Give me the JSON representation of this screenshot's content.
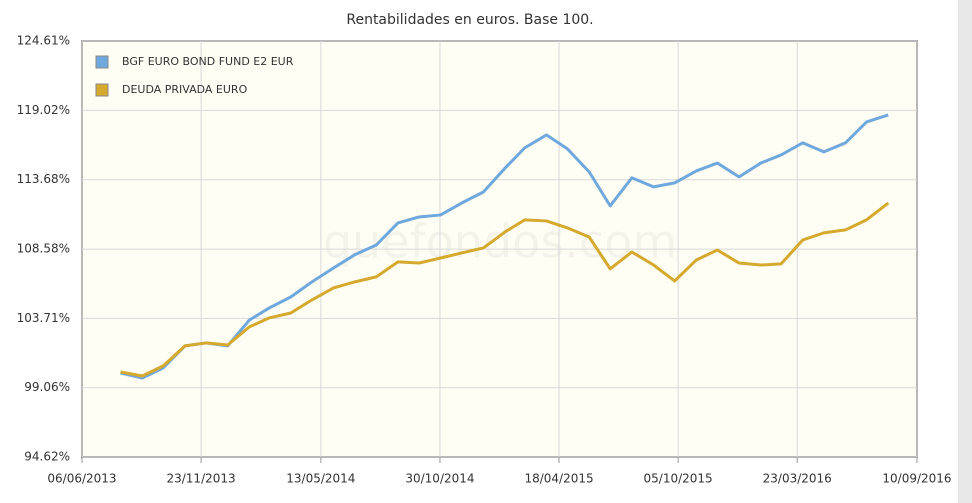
{
  "chart_data": {
    "type": "line",
    "title": "Rentabilidades en euros. Base 100.",
    "watermark": "quefondos.com",
    "x": [
      "31/07/2013",
      "31/08/2013",
      "30/09/2013",
      "31/10/2013",
      "30/11/2013",
      "31/12/2013",
      "31/01/2014",
      "28/02/2014",
      "31/03/2014",
      "30/04/2014",
      "31/05/2014",
      "30/06/2014",
      "31/07/2014",
      "31/08/2014",
      "30/09/2014",
      "31/10/2014",
      "30/11/2014",
      "31/12/2014",
      "31/01/2015",
      "28/02/2015",
      "31/03/2015",
      "30/04/2015",
      "31/05/2015",
      "30/06/2015",
      "31/07/2015",
      "31/08/2015",
      "30/09/2015",
      "31/10/2015",
      "30/11/2015",
      "31/12/2015",
      "31/01/2016",
      "29/02/2016",
      "31/03/2016",
      "30/04/2016",
      "31/05/2016",
      "30/06/2016",
      "31/07/2016"
    ],
    "series": [
      {
        "name": "BGF EURO BOND FUND E2 EUR",
        "color": "#6fa8dc",
        "values": [
          100.03,
          99.7,
          100.37,
          101.84,
          102.04,
          101.84,
          103.6,
          104.42,
          105.19,
          106.24,
          107.23,
          108.16,
          108.87,
          110.47,
          110.91,
          111.06,
          111.94,
          112.76,
          114.56,
          116.1,
          117.1,
          116.02,
          114.27,
          111.73,
          113.82,
          113.14,
          113.44,
          114.34,
          114.94,
          113.89,
          114.94,
          115.56,
          116.49,
          115.79,
          116.49,
          118.11,
          118.66
        ]
      },
      {
        "name": "DEUDA PRIVADA EURO",
        "color": "#d4a92e",
        "values": [
          100.1,
          99.83,
          100.5,
          101.84,
          102.04,
          101.9,
          103.13,
          103.74,
          104.08,
          104.98,
          105.82,
          106.24,
          106.6,
          107.66,
          107.58,
          107.94,
          108.3,
          108.66,
          109.82,
          110.7,
          110.62,
          110.11,
          109.45,
          107.17,
          108.37,
          107.44,
          106.31,
          107.8,
          108.51,
          107.58,
          107.44,
          107.52,
          109.24,
          109.75,
          109.97,
          110.7,
          111.94
        ]
      }
    ],
    "xlim": [
      "06/06/2013",
      "10/09/2016"
    ],
    "xticks": [
      "06/06/2013",
      "23/11/2013",
      "13/05/2014",
      "30/10/2014",
      "18/04/2015",
      "05/10/2015",
      "23/03/2016",
      "10/09/2016"
    ],
    "ylim": [
      94.62,
      124.61
    ],
    "yticks": [
      {
        "value": 94.62,
        "label": "94.62%"
      },
      {
        "value": 99.06,
        "label": "99.06%"
      },
      {
        "value": 103.71,
        "label": "103.71%"
      },
      {
        "value": 108.58,
        "label": "108.58%"
      },
      {
        "value": 113.68,
        "label": "113.68%"
      },
      {
        "value": 119.02,
        "label": "119.02%"
      },
      {
        "value": 124.61,
        "label": "124.61%"
      }
    ],
    "log_scale": true,
    "grid": true,
    "legend": "upper left"
  }
}
